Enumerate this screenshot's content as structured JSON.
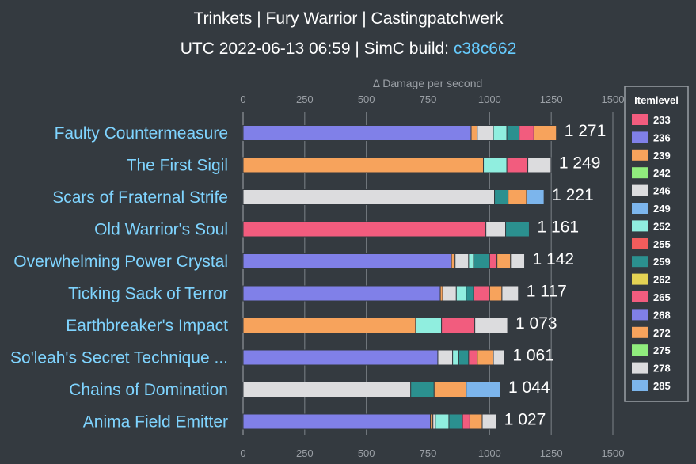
{
  "header": {
    "title": "Trinkets | Fury Warrior | Castingpatchwerk",
    "subtitle_prefix": "UTC 2022-06-13 06:59 | SimC build: ",
    "build": "c38c662"
  },
  "chart_data": {
    "type": "bar",
    "orientation": "horizontal",
    "stacked": true,
    "xlabel": "Δ Damage per second",
    "xlim": [
      0,
      1500
    ],
    "xticks": [
      0,
      250,
      500,
      750,
      1000,
      1250,
      1500
    ],
    "grid": true,
    "legend": {
      "title": "Itemlevel",
      "position": "right"
    },
    "levels": [
      "233",
      "236",
      "239",
      "242",
      "246",
      "249",
      "252",
      "255",
      "259",
      "262",
      "265",
      "268",
      "272",
      "275",
      "278",
      "285"
    ],
    "colors": {
      "233": "#f25c7e",
      "236": "#8080e8",
      "239": "#f7a35c",
      "242": "#90ed7d",
      "246": "#dcdcde",
      "249": "#7cb5ec",
      "252": "#90eedf",
      "255": "#f15c5c",
      "259": "#2b908f",
      "262": "#e4d354",
      "265": "#f25c7e",
      "268": "#8080e8",
      "272": "#f7a35c",
      "275": "#90ed7d",
      "278": "#dcdcde",
      "285": "#7cb5ec"
    },
    "bars": [
      {
        "name": "Faulty Countermeasure",
        "total": "1 271",
        "segments": [
          {
            "level": "236",
            "value": 925
          },
          {
            "level": "239",
            "value": 25
          },
          {
            "level": "246",
            "value": 65
          },
          {
            "level": "252",
            "value": 55
          },
          {
            "level": "259",
            "value": 50
          },
          {
            "level": "265",
            "value": 60
          },
          {
            "level": "272",
            "value": 91
          }
        ]
      },
      {
        "name": "The First Sigil",
        "total": "1 249",
        "segments": [
          {
            "level": "239",
            "value": 975
          },
          {
            "level": "252",
            "value": 95
          },
          {
            "level": "265",
            "value": 85
          },
          {
            "level": "278",
            "value": 94
          }
        ]
      },
      {
        "name": "Scars of Fraternal Strife",
        "total": "1 221",
        "segments": [
          {
            "level": "246",
            "value": 1020
          },
          {
            "level": "259",
            "value": 55
          },
          {
            "level": "272",
            "value": 75
          },
          {
            "level": "285",
            "value": 71
          }
        ]
      },
      {
        "name": "Old Warrior's Soul",
        "total": "1 161",
        "segments": [
          {
            "level": "233",
            "value": 985
          },
          {
            "level": "246",
            "value": 80
          },
          {
            "level": "259",
            "value": 96
          }
        ]
      },
      {
        "name": "Overwhelming Power Crystal",
        "total": "1 142",
        "segments": [
          {
            "level": "236",
            "value": 845
          },
          {
            "level": "239",
            "value": 15
          },
          {
            "level": "246",
            "value": 55
          },
          {
            "level": "252",
            "value": 20
          },
          {
            "level": "259",
            "value": 65
          },
          {
            "level": "265",
            "value": 30
          },
          {
            "level": "272",
            "value": 55
          },
          {
            "level": "278",
            "value": 57
          }
        ]
      },
      {
        "name": "Ticking Sack of Terror",
        "total": "1 117",
        "segments": [
          {
            "level": "236",
            "value": 800
          },
          {
            "level": "239",
            "value": 10
          },
          {
            "level": "246",
            "value": 55
          },
          {
            "level": "252",
            "value": 40
          },
          {
            "level": "259",
            "value": 30
          },
          {
            "level": "265",
            "value": 65
          },
          {
            "level": "272",
            "value": 50
          },
          {
            "level": "278",
            "value": 67
          }
        ]
      },
      {
        "name": "Earthbreaker's Impact",
        "total": "1 073",
        "segments": [
          {
            "level": "239",
            "value": 700
          },
          {
            "level": "252",
            "value": 105
          },
          {
            "level": "265",
            "value": 135
          },
          {
            "level": "278",
            "value": 133
          }
        ]
      },
      {
        "name": "So'leah's Secret Technique ...",
        "total": "1 061",
        "segments": [
          {
            "level": "236",
            "value": 790
          },
          {
            "level": "246",
            "value": 60
          },
          {
            "level": "252",
            "value": 25
          },
          {
            "level": "259",
            "value": 40
          },
          {
            "level": "265",
            "value": 35
          },
          {
            "level": "272",
            "value": 65
          },
          {
            "level": "278",
            "value": 46
          }
        ]
      },
      {
        "name": "Chains of Domination",
        "total": "1 044",
        "segments": [
          {
            "level": "246",
            "value": 680
          },
          {
            "level": "259",
            "value": 95
          },
          {
            "level": "272",
            "value": 130
          },
          {
            "level": "285",
            "value": 139
          }
        ]
      },
      {
        "name": "Anima Field Emitter",
        "total": "1 027",
        "segments": [
          {
            "level": "236",
            "value": 760
          },
          {
            "level": "239",
            "value": 10
          },
          {
            "level": "246",
            "value": 10
          },
          {
            "level": "252",
            "value": 55
          },
          {
            "level": "259",
            "value": 55
          },
          {
            "level": "265",
            "value": 30
          },
          {
            "level": "272",
            "value": 50
          },
          {
            "level": "278",
            "value": 57
          }
        ]
      }
    ]
  }
}
